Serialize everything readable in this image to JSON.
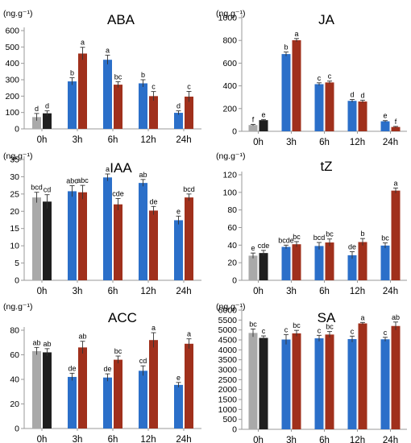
{
  "colors": {
    "control_a": "#a9a9a9",
    "control_b": "#1f1f1f",
    "treat_a": "#2b6fc9",
    "treat_b": "#a0301c",
    "axis": "#9a9a9a"
  },
  "chart_data": [
    {
      "type": "bar",
      "title": "ABA",
      "unit": "(ng.g⁻¹)",
      "categories": [
        "0h",
        "3h",
        "6h",
        "12h",
        "24h"
      ],
      "ylim": [
        0,
        600
      ],
      "yticks": [
        0,
        100,
        200,
        300,
        400,
        500,
        600
      ],
      "series": [
        {
          "values": [
            72,
            290,
            422,
            278,
            98
          ],
          "errors": [
            22,
            22,
            28,
            22,
            12
          ],
          "labels": [
            "d",
            "b",
            "a",
            "b",
            "d"
          ]
        },
        {
          "values": [
            95,
            460,
            270,
            200,
            197
          ],
          "errors": [
            15,
            38,
            18,
            28,
            32
          ],
          "labels": [
            "d",
            "a",
            "bc",
            "c",
            "c"
          ]
        }
      ]
    },
    {
      "type": "bar",
      "title": "JA",
      "unit": "(ng.g⁻¹)",
      "categories": [
        "0h",
        "3h",
        "6h",
        "12h",
        "24h"
      ],
      "ylim": [
        0,
        1000
      ],
      "yticks": [
        0,
        200,
        400,
        600,
        800,
        1000
      ],
      "series": [
        {
          "values": [
            55,
            680,
            415,
            268,
            88
          ],
          "errors": [
            6,
            18,
            12,
            12,
            6
          ],
          "labels": [
            "f",
            "b",
            "c",
            "d",
            "e"
          ]
        },
        {
          "values": [
            98,
            802,
            430,
            262,
            38
          ],
          "errors": [
            6,
            15,
            12,
            12,
            5
          ],
          "labels": [
            "e",
            "a",
            "c",
            "d",
            "f"
          ]
        }
      ]
    },
    {
      "type": "bar",
      "title": "IAA",
      "unit": "(ng.g⁻¹)",
      "categories": [
        "0h",
        "3h",
        "6h",
        "12h",
        "24h"
      ],
      "ylim": [
        0,
        35
      ],
      "yticks": [
        0,
        5,
        10,
        15,
        20,
        25,
        30,
        35
      ],
      "series": [
        {
          "values": [
            24,
            25.8,
            29.8,
            28.2,
            17.4
          ],
          "errors": [
            1.5,
            1.6,
            1.0,
            1.0,
            1.2
          ],
          "labels": [
            "bcd",
            "abc",
            "a",
            "ab",
            "e"
          ]
        },
        {
          "values": [
            22.8,
            25.5,
            22,
            20.2,
            24
          ],
          "errors": [
            2.0,
            2.0,
            1.7,
            1.2,
            1.0
          ],
          "labels": [
            "cd",
            "abc",
            "cde",
            "de",
            "bcd"
          ]
        }
      ]
    },
    {
      "type": "bar",
      "title": "tZ",
      "unit": "(ng.g⁻¹)",
      "categories": [
        "0h",
        "3h",
        "6h",
        "12h",
        "24h"
      ],
      "ylim": [
        0,
        120
      ],
      "yticks": [
        0,
        20,
        40,
        60,
        80,
        100,
        120
      ],
      "series": [
        {
          "values": [
            28,
            38,
            39,
            28.5,
            39.5
          ],
          "errors": [
            3,
            2,
            4,
            4,
            3
          ],
          "labels": [
            "e",
            "bcde",
            "bcd",
            "de",
            "bc"
          ]
        },
        {
          "values": [
            31,
            41,
            43,
            43.5,
            102
          ],
          "errors": [
            3,
            3,
            4,
            4,
            3
          ],
          "labels": [
            "cde",
            "bc",
            "bc",
            "b",
            "a"
          ]
        }
      ]
    },
    {
      "type": "bar",
      "title": "ACC",
      "unit": "(ng.g⁻¹)",
      "categories": [
        "0h",
        "3h",
        "6h",
        "12h",
        "24h"
      ],
      "ylim": [
        0,
        80
      ],
      "yticks": [
        0,
        20,
        40,
        60,
        80
      ],
      "series": [
        {
          "values": [
            63,
            42,
            41.5,
            47,
            35.5
          ],
          "errors": [
            3,
            3,
            3,
            4,
            2
          ],
          "labels": [
            "ab",
            "de",
            "de",
            "cd",
            "e"
          ]
        },
        {
          "values": [
            62,
            66,
            56,
            72,
            69
          ],
          "errors": [
            3,
            5,
            3,
            6,
            4
          ],
          "labels": [
            "ab",
            "ab",
            "bc",
            "a",
            "a"
          ]
        }
      ]
    },
    {
      "type": "bar",
      "title": "SA",
      "unit": "(ng.g⁻¹)",
      "categories": [
        "0h",
        "3h",
        "6h",
        "12h",
        "24h"
      ],
      "ylim": [
        0,
        6000
      ],
      "yticks": [
        0,
        500,
        1000,
        1500,
        2000,
        2500,
        3000,
        3500,
        4000,
        4500,
        5000,
        5500,
        6000
      ],
      "series": [
        {
          "values": [
            4850,
            4520,
            4580,
            4540,
            4530
          ],
          "errors": [
            200,
            250,
            150,
            150,
            100
          ],
          "labels": [
            "bc",
            "c",
            "c",
            "c",
            "c"
          ]
        },
        {
          "values": [
            4600,
            4830,
            4770,
            5330,
            5200
          ],
          "errors": [
            100,
            150,
            150,
            50,
            200
          ],
          "labels": [
            "c",
            "bc",
            "bc",
            "a",
            "ab"
          ]
        }
      ]
    }
  ]
}
